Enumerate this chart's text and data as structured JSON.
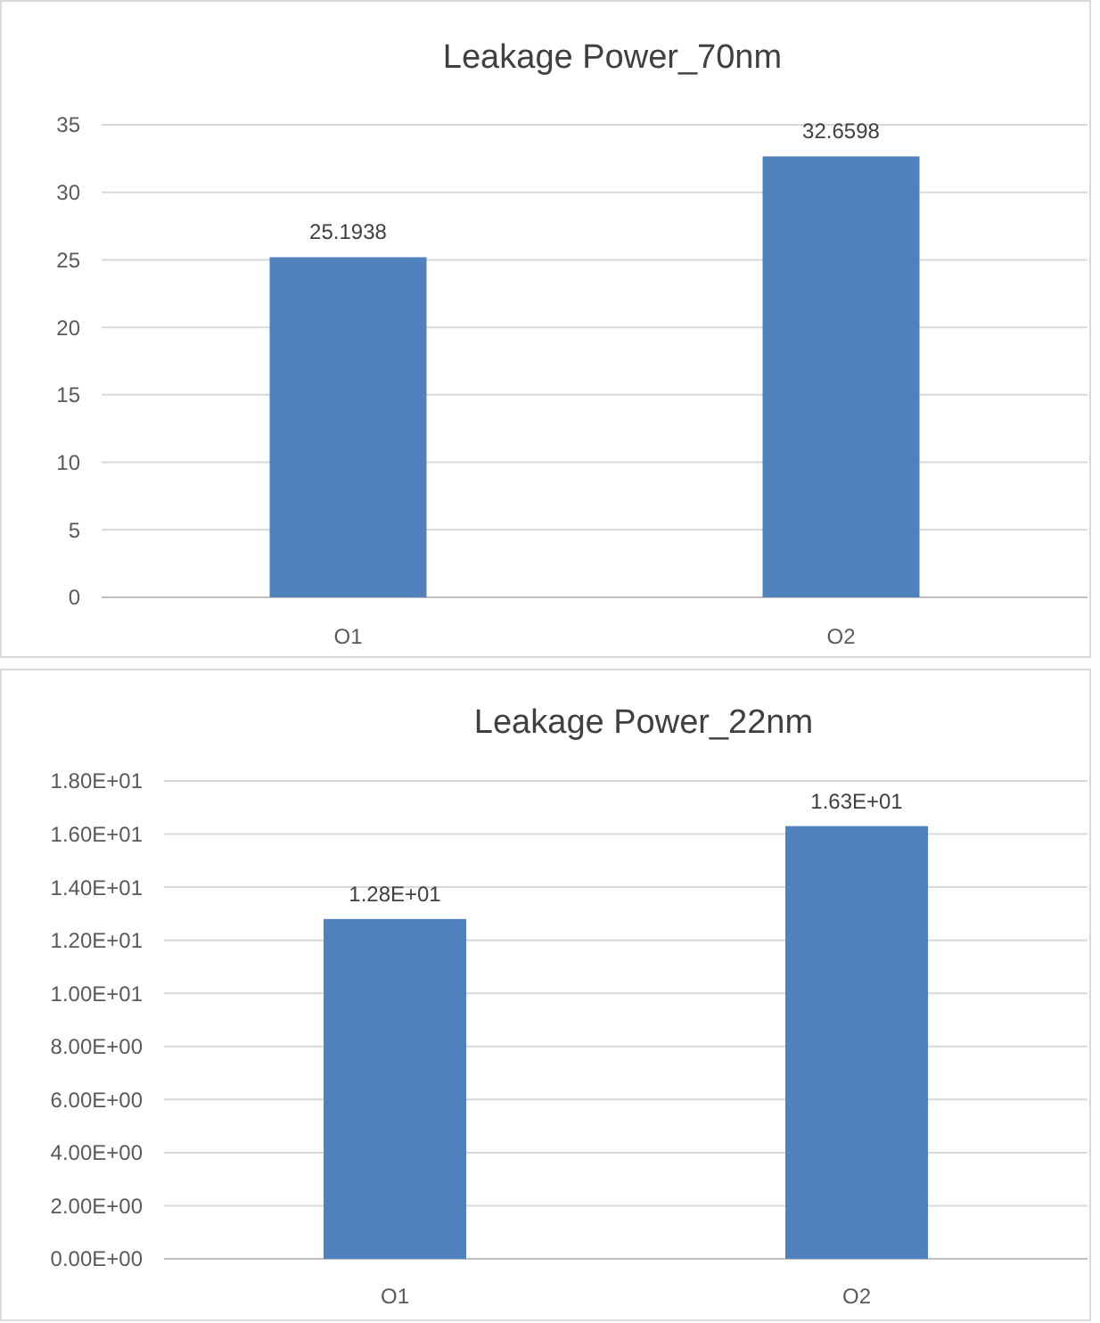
{
  "chart_data": [
    {
      "type": "bar",
      "title": "Leakage Power_70nm",
      "categories": [
        "O1",
        "O2"
      ],
      "values": [
        25.1938,
        32.6598
      ],
      "color": "#4f81bd",
      "ylim": [
        0,
        35
      ],
      "yticks": [
        0,
        5,
        10,
        15,
        20,
        25,
        30,
        35
      ],
      "grid": "y",
      "data_labels": true
    },
    {
      "type": "bar",
      "title": "Leakage Power_22nm",
      "categories": [
        "O1",
        "O2"
      ],
      "values": [
        12.8,
        16.3
      ],
      "value_labels": [
        "1.28E+01",
        "1.63E+01"
      ],
      "color": "#4f81bd",
      "ylim": [
        0,
        18
      ],
      "yticks": [
        {
          "value": 0,
          "label": "0.00E+00"
        },
        {
          "value": 2,
          "label": "2.00E+00"
        },
        {
          "value": 4,
          "label": "4.00E+00"
        },
        {
          "value": 6,
          "label": "6.00E+00"
        },
        {
          "value": 8,
          "label": "8.00E+00"
        },
        {
          "value": 10,
          "label": "1.00E+01"
        },
        {
          "value": 12,
          "label": "1.20E+01"
        },
        {
          "value": 14,
          "label": "1.40E+01"
        },
        {
          "value": 16,
          "label": "1.60E+01"
        },
        {
          "value": 18,
          "label": "1.80E+01"
        }
      ],
      "grid": "y"
    }
  ]
}
